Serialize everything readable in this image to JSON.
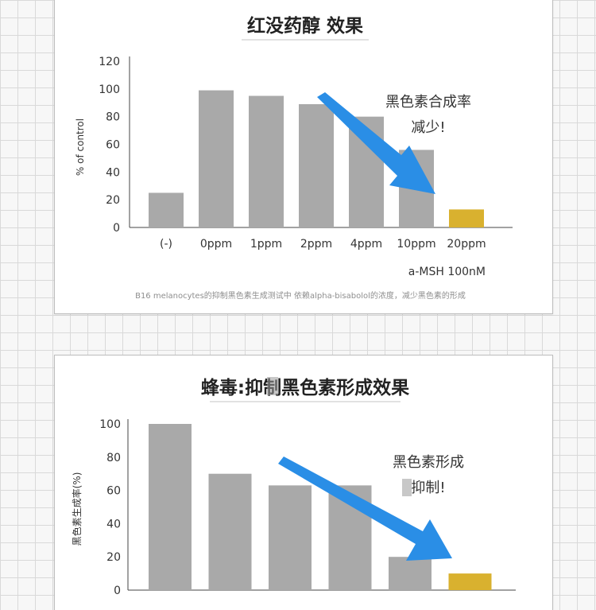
{
  "colors": {
    "bar": "#a9a9a9",
    "highlight": "#d9b12f",
    "arrow": "#2a8ee6",
    "axis": "#444444"
  },
  "chart_data": [
    {
      "type": "bar",
      "title": "红没药醇 效果",
      "ylabel": "% of control",
      "xlabel": "a-MSH 100nM",
      "ylim": [
        0,
        120
      ],
      "yticks": [
        0,
        20,
        40,
        60,
        80,
        100,
        120
      ],
      "categories": [
        "(-)",
        "0ppm",
        "1ppm",
        "2ppm",
        "4ppm",
        "10ppm",
        "20ppm"
      ],
      "values": [
        25,
        99,
        95,
        89,
        80,
        56,
        13
      ],
      "highlight_index": 6,
      "annotation": [
        "黑色素合成率",
        "减少!"
      ],
      "caption": "B16 melanocytes的抑制黑色素生成测试中 依赖alpha-bisabolol的浓度，减少黑色素的形成"
    },
    {
      "type": "bar",
      "title": "蜂毒:抑制黑色素形成效果",
      "ylabel": "黑色素生成率(%)",
      "ylim": [
        0,
        100
      ],
      "yticks": [
        0,
        20,
        40,
        60,
        80,
        100
      ],
      "categories": [
        "",
        "",
        "",
        "",
        "",
        ""
      ],
      "values": [
        100,
        70,
        63,
        63,
        20,
        10
      ],
      "highlight_index": 5,
      "annotation": [
        "黑色素形成",
        "抑制!"
      ]
    }
  ]
}
